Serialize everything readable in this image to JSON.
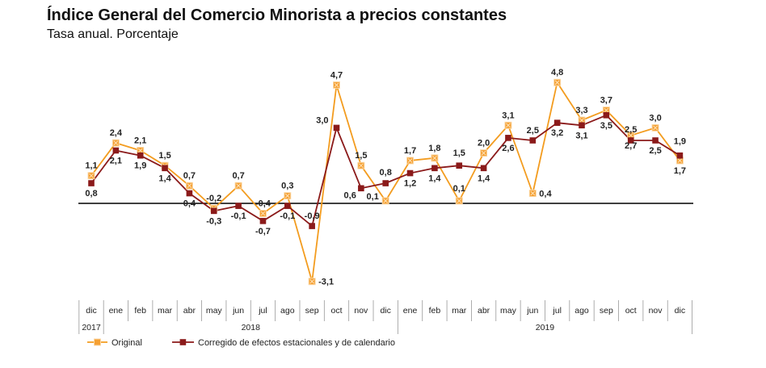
{
  "title": "Índice General del Comercio Minorista a precios constantes",
  "subtitle": "Tasa anual. Porcentaje",
  "chart_data": {
    "type": "line",
    "categories": [
      "dic",
      "ene",
      "feb",
      "mar",
      "abr",
      "may",
      "jun",
      "jul",
      "ago",
      "sep",
      "oct",
      "nov",
      "dic",
      "ene",
      "feb",
      "mar",
      "abr",
      "may",
      "jun",
      "jul",
      "ago",
      "sep",
      "oct",
      "nov",
      "dic"
    ],
    "year_groups": [
      {
        "label": "2017",
        "start": 0,
        "end": 0
      },
      {
        "label": "2018",
        "start": 1,
        "end": 12
      },
      {
        "label": "2019",
        "start": 13,
        "end": 24
      }
    ],
    "series": [
      {
        "name": "Original",
        "color": "#f39c1f",
        "values": [
          1.1,
          2.4,
          2.1,
          1.5,
          0.7,
          -0.2,
          0.7,
          -0.4,
          0.3,
          -3.1,
          4.7,
          1.5,
          0.1,
          1.7,
          1.8,
          0.1,
          2.0,
          3.1,
          0.4,
          4.8,
          3.3,
          3.7,
          2.7,
          3.0,
          1.7
        ]
      },
      {
        "name": "Corregido de efectos estacionales y de calendario",
        "color": "#8b1a1a",
        "values": [
          0.8,
          2.1,
          1.9,
          1.4,
          0.4,
          -0.3,
          -0.1,
          -0.7,
          -0.1,
          -0.9,
          3.0,
          0.6,
          0.8,
          1.2,
          1.4,
          1.5,
          1.4,
          2.6,
          2.5,
          3.2,
          3.1,
          3.5,
          2.5,
          2.5,
          1.9
        ]
      }
    ],
    "labels": {
      "original": [
        "1,1",
        "2,4",
        "2,1",
        "1,5",
        "0,7",
        "-0,2",
        "0,7",
        "-0,4",
        "0,3",
        "-3,1",
        "4,7",
        "1,5",
        "0,1",
        "1,7",
        "1,8",
        "0,1",
        "2,0",
        "3,1",
        "0,4",
        "4,8",
        "3,3",
        "3,7",
        "2,7",
        "3,0",
        "1,7"
      ],
      "corregido": [
        "0,8",
        "2,1",
        "1,9",
        "1,4",
        "0,4",
        "-0,3",
        "-0,1",
        "-0,7",
        "-0,1",
        "-0,9",
        "3,0",
        "0,6",
        "0,8",
        "1,2",
        "1,4",
        "1,5",
        "1,4",
        "2,6",
        "2,5",
        "3,2",
        "3,1",
        "3,5",
        "2,5",
        "2,5",
        "1,9"
      ]
    },
    "legend_position": "bottom-left",
    "grid": false,
    "zero_line": true
  }
}
